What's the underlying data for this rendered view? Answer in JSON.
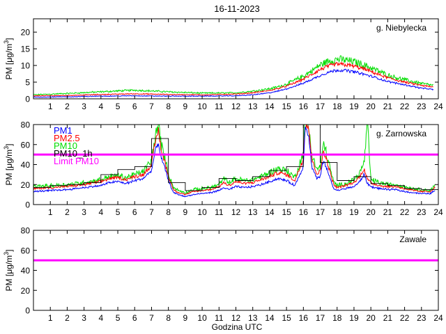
{
  "figure": {
    "title": "16-11-2023",
    "xlabel": "Godzina UTC"
  },
  "colors": {
    "pm1": "#0000ff",
    "pm25": "#ff0000",
    "pm10": "#00dd00",
    "pm10_1h": "#000000",
    "limit": "#ff00ff"
  },
  "chart_data": [
    {
      "type": "line",
      "title": "g. Niebylecka",
      "ylabel": "PM [μg/m3]",
      "xlim": [
        0,
        24
      ],
      "ylim": [
        0,
        24
      ],
      "yticks": [
        0,
        5,
        10,
        15,
        20
      ],
      "xticks": [
        1,
        2,
        3,
        4,
        5,
        6,
        7,
        8,
        9,
        10,
        11,
        12,
        13,
        14,
        15,
        16,
        17,
        18,
        19,
        20,
        21,
        22,
        23,
        24
      ],
      "x": [
        0,
        2,
        4,
        6,
        8,
        10,
        12,
        13,
        14,
        14.5,
        15,
        15.5,
        16,
        16.5,
        17,
        17.5,
        18,
        18.5,
        19,
        19.5,
        20,
        20.5,
        21,
        22,
        23,
        23.7
      ],
      "series": [
        {
          "name": "PM1",
          "key": "pm1",
          "values": [
            0.5,
            0.6,
            0.8,
            0.9,
            0.8,
            0.8,
            0.9,
            1.2,
            1.8,
            2.3,
            3.0,
            3.8,
            4.7,
            5.8,
            7.0,
            8.0,
            8.6,
            8.5,
            8.1,
            7.5,
            6.8,
            6.0,
            5.2,
            4.2,
            3.2,
            2.8
          ]
        },
        {
          "name": "PM2.5",
          "key": "pm25",
          "values": [
            0.9,
            1.0,
            1.3,
            1.5,
            1.3,
            1.2,
            1.4,
            1.8,
            2.5,
            3.1,
            3.8,
            4.8,
            5.9,
            7.3,
            8.8,
            9.8,
            10.4,
            10.2,
            9.8,
            9.1,
            8.2,
            7.2,
            6.3,
            5.0,
            4.0,
            3.5
          ]
        },
        {
          "name": "PM10",
          "key": "pm10",
          "values": [
            1.2,
            1.6,
            2.1,
            2.6,
            2.1,
            1.7,
            1.8,
            2.3,
            3.0,
            3.6,
            4.4,
            5.6,
            6.8,
            8.4,
            10.2,
            11.3,
            11.9,
            11.6,
            11.1,
            10.3,
            9.3,
            8.2,
            7.1,
            5.7,
            4.6,
            4.0
          ]
        }
      ]
    },
    {
      "type": "line",
      "title": "g. Zarnowska",
      "ylabel": "PM [μg/m3]",
      "xlim": [
        0,
        24
      ],
      "ylim": [
        0,
        80
      ],
      "yticks": [
        0,
        20,
        40,
        60,
        80
      ],
      "xticks": [
        1,
        2,
        3,
        4,
        5,
        6,
        7,
        8,
        9,
        10,
        11,
        12,
        13,
        14,
        15,
        16,
        17,
        18,
        19,
        20,
        21,
        22,
        23,
        24
      ],
      "x": [
        0,
        1,
        2,
        3,
        4,
        4.5,
        5,
        5.5,
        6,
        6.5,
        7,
        7.2,
        7.4,
        7.6,
        7.8,
        8,
        8.3,
        8.6,
        9,
        9.5,
        10,
        10.5,
        11,
        11.3,
        11.6,
        12,
        12.5,
        13,
        13.5,
        14,
        14.5,
        15,
        15.5,
        16,
        16.1,
        16.3,
        16.5,
        16.8,
        17,
        17.2,
        17.5,
        17.8,
        18,
        18.5,
        19,
        19.3,
        19.6,
        19.8,
        20,
        20.5,
        21,
        21.5,
        22,
        22.5,
        23,
        23.5,
        23.8
      ],
      "series": [
        {
          "name": "PM1",
          "key": "pm1",
          "values": [
            13,
            14,
            15,
            17,
            19,
            22,
            23,
            21,
            24,
            26,
            34,
            52,
            62,
            45,
            36,
            24,
            12,
            10,
            8,
            10,
            11,
            12,
            14,
            17,
            15,
            18,
            17,
            18,
            20,
            23,
            26,
            24,
            19,
            38,
            80,
            70,
            38,
            26,
            28,
            45,
            30,
            16,
            14,
            16,
            18,
            22,
            30,
            21,
            18,
            16,
            15,
            15,
            13,
            12,
            11,
            11,
            14
          ]
        },
        {
          "name": "PM2.5",
          "key": "pm25",
          "values": [
            16,
            17,
            18,
            20,
            23,
            26,
            27,
            25,
            28,
            30,
            40,
            60,
            75,
            52,
            42,
            28,
            15,
            12,
            10,
            13,
            14,
            15,
            18,
            22,
            19,
            23,
            21,
            22,
            25,
            28,
            32,
            30,
            24,
            46,
            80,
            80,
            45,
            31,
            33,
            55,
            37,
            20,
            17,
            19,
            22,
            27,
            36,
            25,
            22,
            19,
            18,
            18,
            16,
            14,
            13,
            13,
            17
          ]
        },
        {
          "name": "PM10",
          "key": "pm10",
          "values": [
            18,
            19,
            20,
            22,
            25,
            28,
            29,
            27,
            30,
            33,
            44,
            66,
            80,
            58,
            46,
            31,
            17,
            14,
            12,
            15,
            16,
            17,
            20,
            26,
            22,
            26,
            24,
            25,
            28,
            32,
            36,
            34,
            27,
            52,
            80,
            80,
            50,
            35,
            38,
            62,
            42,
            22,
            19,
            21,
            25,
            30,
            42,
            80,
            25,
            22,
            20,
            20,
            18,
            16,
            15,
            14,
            19
          ]
        }
      ],
      "hourly_pm10": {
        "name": "PM10_1h",
        "values": [
          17,
          19,
          20,
          22,
          30,
          35,
          38,
          66,
          22,
          14,
          17,
          26,
          24,
          28,
          34,
          38,
          80,
          42,
          24,
          28,
          21,
          19,
          16,
          15
        ]
      },
      "limit": {
        "name": "Limit PM10",
        "value": 50
      }
    },
    {
      "type": "line",
      "title": "Zawale",
      "ylabel": "PM [μg/m3]",
      "xlim": [
        0,
        24
      ],
      "ylim": [
        0,
        80
      ],
      "yticks": [
        0,
        20,
        40,
        60,
        80
      ],
      "xticks": [
        1,
        2,
        3,
        4,
        5,
        6,
        7,
        8,
        9,
        10,
        11,
        12,
        13,
        14,
        15,
        16,
        17,
        18,
        19,
        20,
        21,
        22,
        23,
        24
      ],
      "series": [],
      "limit": {
        "value": 50
      }
    }
  ],
  "legend": [
    {
      "label": "PM1",
      "key": "pm1"
    },
    {
      "label": "PM2.5",
      "key": "pm25"
    },
    {
      "label": "PM10",
      "key": "pm10"
    },
    {
      "label": "PM10_1h",
      "key": "pm10_1h"
    },
    {
      "label": "Limit PM10",
      "key": "limit"
    }
  ]
}
